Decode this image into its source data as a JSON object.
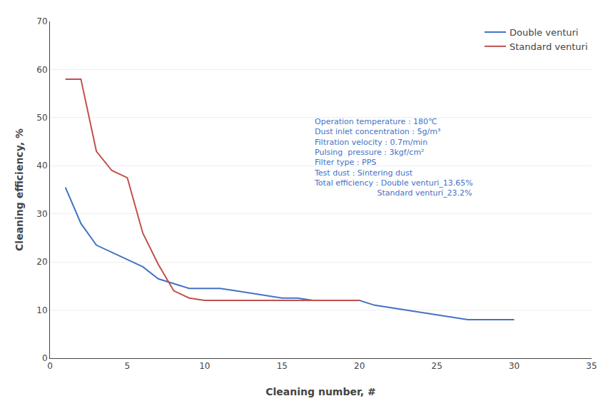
{
  "chart_data": {
    "type": "line",
    "xlabel": "Cleaning number, #",
    "ylabel": "Cleaning efficiency, %",
    "series": [
      {
        "name": "Double venturi",
        "color": "#4472C4",
        "x": [
          1,
          2,
          3,
          4,
          5,
          6,
          7,
          8,
          9,
          10,
          11,
          12,
          13,
          14,
          15,
          16,
          17,
          18,
          19,
          20,
          21,
          22,
          23,
          24,
          25,
          26,
          27,
          28,
          29,
          30
        ],
        "values": [
          35.5,
          28.0,
          23.5,
          22.0,
          20.5,
          19.0,
          16.5,
          15.5,
          14.5,
          14.5,
          14.5,
          14.0,
          13.5,
          13.0,
          12.5,
          12.5,
          12.0,
          12.0,
          12.0,
          12.0,
          11.0,
          10.5,
          10.0,
          9.5,
          9.0,
          8.5,
          8.0,
          8.0,
          8.0,
          8.0
        ]
      },
      {
        "name": "Standard venturi",
        "color": "#C0504D",
        "x": [
          1,
          2,
          3,
          4,
          5,
          6,
          7,
          8,
          9,
          10,
          11,
          12,
          13,
          14,
          15,
          16,
          17,
          18,
          19,
          20
        ],
        "values": [
          58.0,
          58.0,
          43.0,
          39.0,
          37.5,
          26.0,
          19.5,
          14.0,
          12.5,
          12.0,
          12.0,
          12.0,
          12.0,
          12.0,
          12.0,
          12.0,
          12.0,
          12.0,
          12.0,
          12.0
        ]
      }
    ],
    "annotation": {
      "lines": [
        "Operation temperature : 180℃",
        "Dust inlet concentration : 5g/m³",
        "Filtration velocity : 0.7m/min",
        "Pulsing  pressure : 3kgf/cm²",
        "Filter type : PPS",
        "Test dust : Sintering dust",
        "Total efficiency : Double venturi_13.65%",
        "                         Standard venturi_23.2%"
      ],
      "color": "#4472C4"
    },
    "xlim": [
      0,
      35
    ],
    "ylim": [
      0,
      70
    ],
    "xticks": [
      0,
      5,
      10,
      15,
      20,
      25,
      30,
      35
    ],
    "yticks": [
      0,
      10,
      20,
      30,
      40,
      50,
      60,
      70
    ],
    "grid": "y",
    "legend": "upper right"
  }
}
